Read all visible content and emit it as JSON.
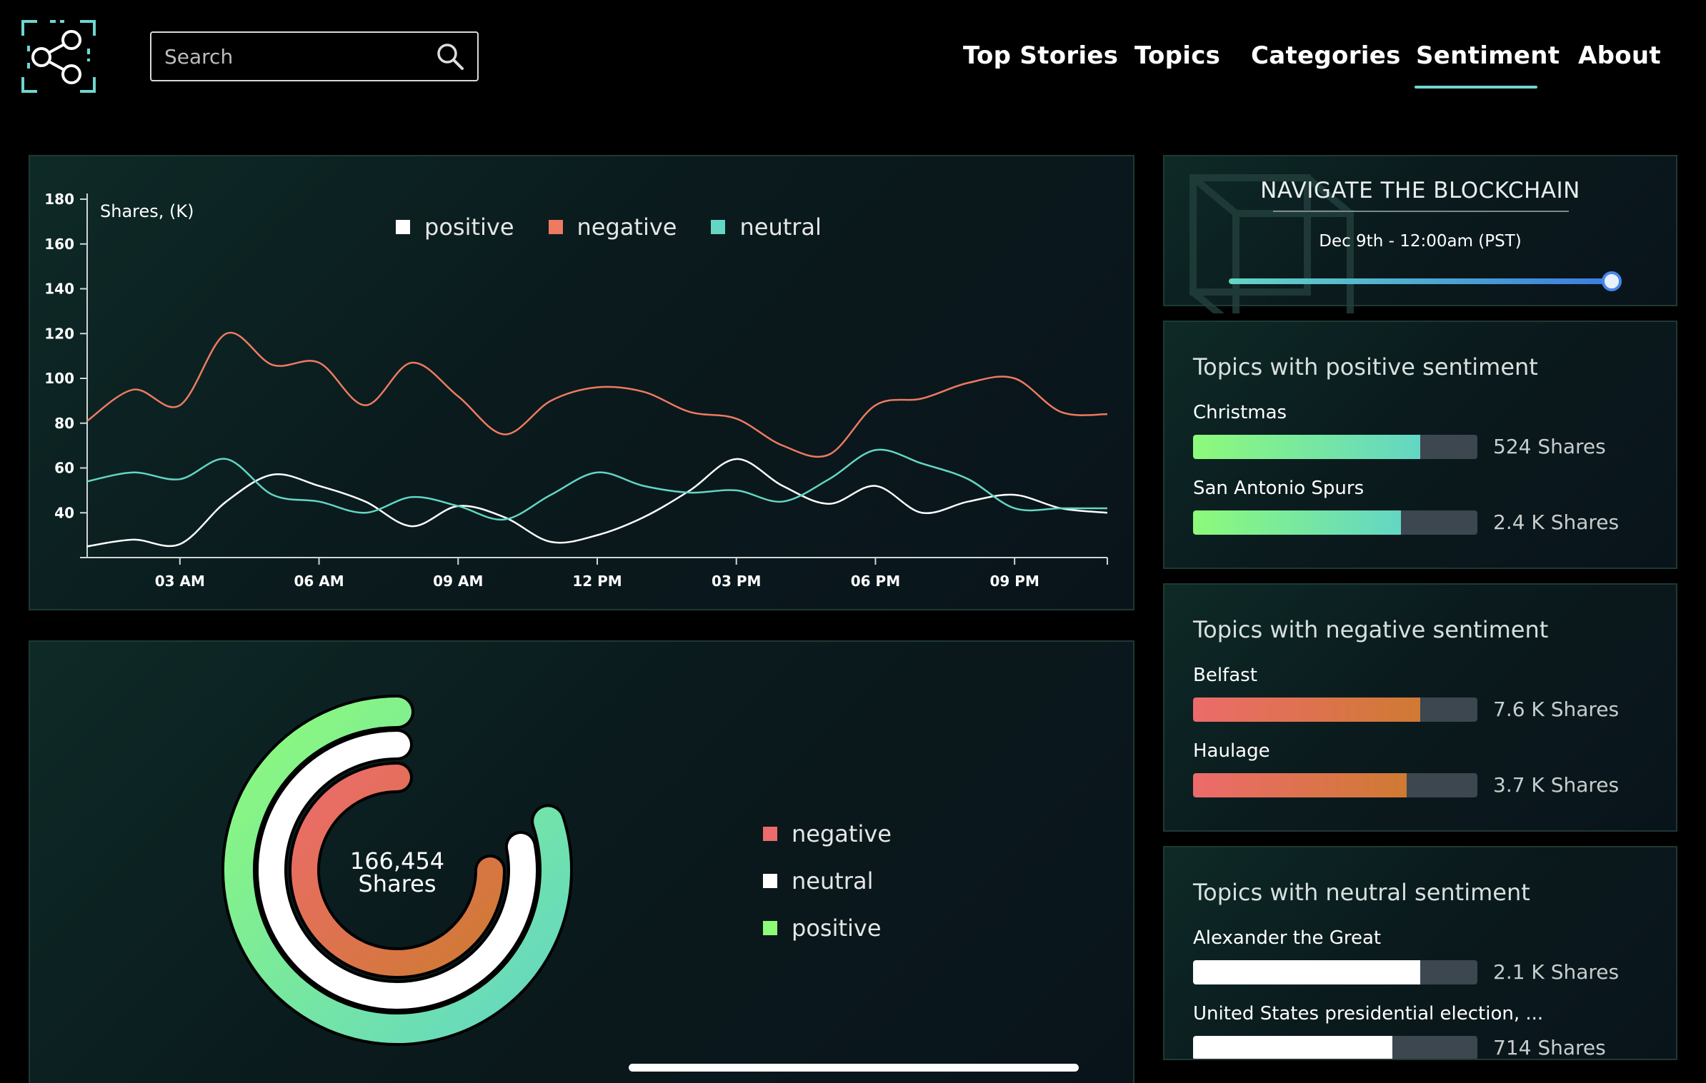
{
  "header": {
    "search_placeholder": "Search",
    "nav": [
      "Top Stories",
      "Topics",
      "Categories",
      "Sentiment",
      "About"
    ],
    "active_nav": "Sentiment"
  },
  "colors": {
    "accent": "#6fd6cf",
    "positive": "#ffffff",
    "negative": "#ee7a61",
    "neutral": "#63d6c4",
    "donut_positive": "#8dfa7a",
    "donut_negative": "#ec6b6b"
  },
  "line_chart": {
    "ylabel": "Shares, (K)",
    "legend": [
      "positive",
      "negative",
      "neutral"
    ]
  },
  "donut": {
    "total": "166,454",
    "unit": "Shares",
    "legend": [
      "negative",
      "neutral",
      "positive"
    ]
  },
  "navigator": {
    "title": "NAVIGATE THE BLOCKCHAIN",
    "date": "Dec 9th - 12:00am (PST)",
    "slider_fraction": 1.0
  },
  "topics": {
    "positive": {
      "title": "Topics with positive sentiment",
      "items": [
        {
          "name": "Christmas",
          "shares": "524 Shares",
          "fraction": 0.8
        },
        {
          "name": "San Antonio Spurs",
          "shares": "2.4 K Shares",
          "fraction": 0.73
        }
      ]
    },
    "negative": {
      "title": "Topics with negative sentiment",
      "items": [
        {
          "name": "Belfast",
          "shares": "7.6 K Shares",
          "fraction": 0.8
        },
        {
          "name": "Haulage",
          "shares": "3.7 K Shares",
          "fraction": 0.75
        }
      ]
    },
    "neutral": {
      "title": "Topics with neutral sentiment",
      "items": [
        {
          "name": "Alexander the Great",
          "shares": "2.1 K Shares",
          "fraction": 0.8
        },
        {
          "name": "United States presidential election, ...",
          "shares": "714 Shares",
          "fraction": 0.7
        }
      ]
    }
  },
  "chart_data": [
    {
      "type": "line",
      "ylabel": "Shares, (K)",
      "xlabel": "",
      "title": "",
      "x_ticks": [
        "03 AM",
        "06 AM",
        "09 AM",
        "12 PM",
        "03 PM",
        "06 PM",
        "09 PM"
      ],
      "y_ticks": [
        40,
        60,
        80,
        100,
        120,
        140,
        160,
        180
      ],
      "ylim": [
        20,
        180
      ],
      "xlim": [
        1,
        23
      ],
      "legend_position": "top-center",
      "series": [
        {
          "name": "positive",
          "x": [
            1,
            2,
            3,
            4,
            5,
            6,
            7,
            8,
            9,
            10,
            11,
            12,
            13,
            14,
            15,
            16,
            17,
            18,
            19,
            20,
            21,
            22,
            23
          ],
          "values": [
            25,
            28,
            26,
            45,
            57,
            52,
            45,
            34,
            43,
            38,
            27,
            30,
            38,
            50,
            64,
            52,
            44,
            52,
            40,
            45,
            48,
            42,
            40
          ]
        },
        {
          "name": "negative",
          "x": [
            1,
            2,
            3,
            4,
            5,
            6,
            7,
            8,
            9,
            10,
            11,
            12,
            13,
            14,
            15,
            16,
            17,
            18,
            19,
            20,
            21,
            22,
            23
          ],
          "values": [
            81,
            95,
            88,
            120,
            106,
            107,
            88,
            107,
            92,
            75,
            90,
            96,
            94,
            85,
            82,
            70,
            66,
            88,
            91,
            98,
            100,
            85,
            84
          ]
        },
        {
          "name": "neutral",
          "x": [
            1,
            2,
            3,
            4,
            5,
            6,
            7,
            8,
            9,
            10,
            11,
            12,
            13,
            14,
            15,
            16,
            17,
            18,
            19,
            20,
            21,
            22,
            23
          ],
          "values": [
            54,
            58,
            55,
            64,
            48,
            45,
            40,
            47,
            43,
            37,
            48,
            58,
            52,
            49,
            50,
            45,
            55,
            68,
            62,
            55,
            42,
            42,
            42
          ]
        }
      ]
    },
    {
      "type": "pie",
      "title": "",
      "center_label": "166,454 Shares",
      "legend_position": "right",
      "series": [
        {
          "name": "negative",
          "fraction": 0.5
        },
        {
          "name": "neutral",
          "fraction": 0.53
        },
        {
          "name": "positive",
          "fraction": 0.55
        }
      ]
    }
  ]
}
